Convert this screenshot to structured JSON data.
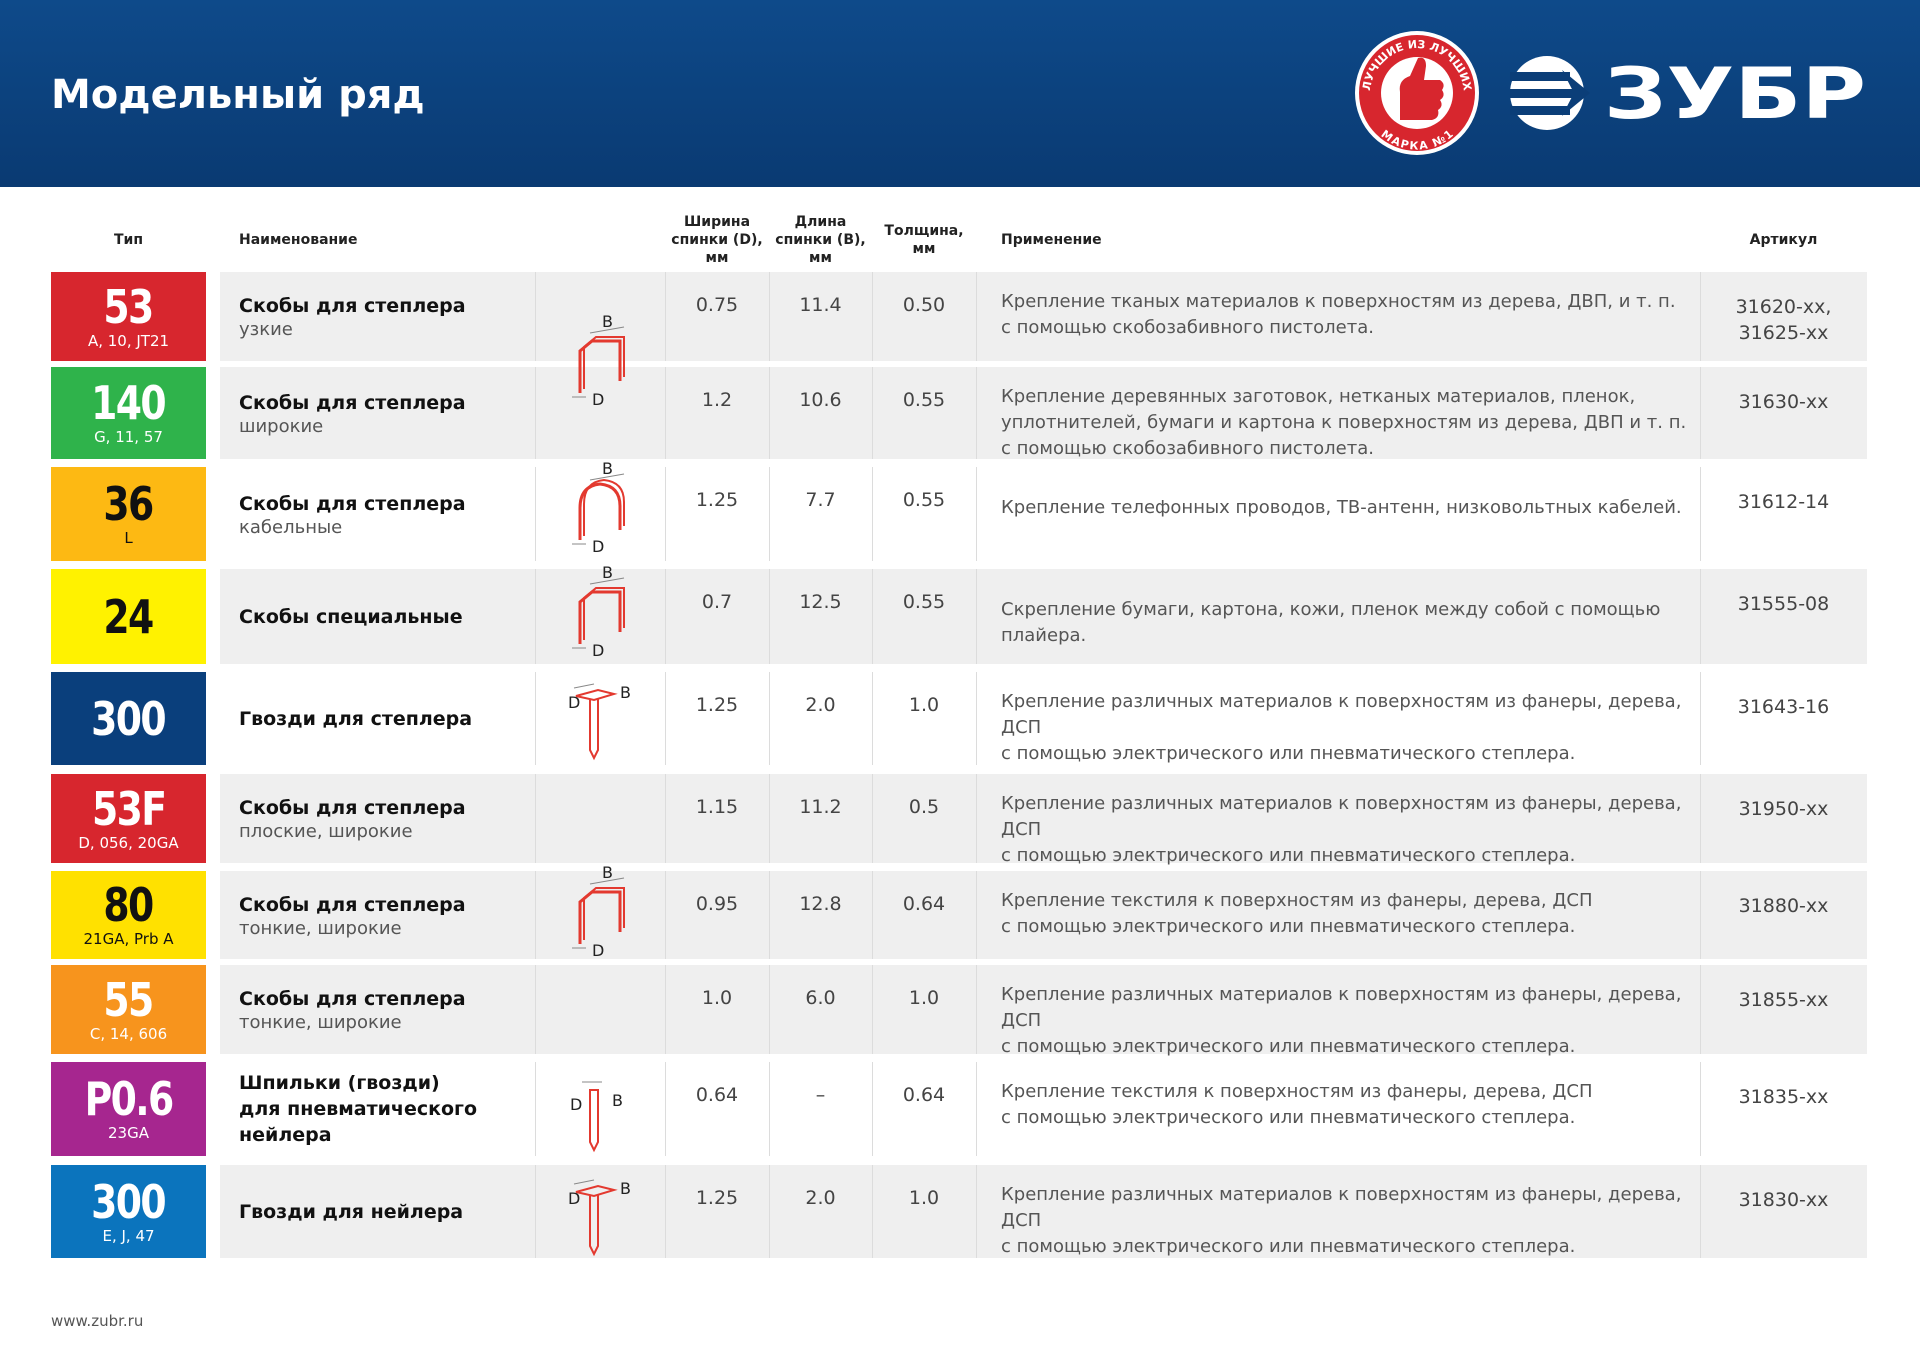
{
  "header": {
    "title": "Модельный ряд",
    "badge_top": "ЛУЧШИЕ ИЗ ЛУЧШИХ",
    "badge_bottom": "МАРКА №1",
    "brand": "ЗУБР"
  },
  "table": {
    "columns": [
      "Тип",
      "Наименование",
      "Ширина\nспинки (D), мм",
      "Длина\nспинки (B), мм",
      "Толщина,\nмм",
      "Применение",
      "Артикул"
    ],
    "rows": [
      {
        "type": "53",
        "type_sub": "A, 10, JT21",
        "color": "#d7262e",
        "text_color": "#ffffff",
        "name": "Скобы для степлера",
        "name_sub": "узкие",
        "d": "0.75",
        "b": "11.4",
        "t": "0.50",
        "application": "Крепление тканых материалов к поверхностям из дерева, ДВП, и т. п.\nс помощью скобозабивного пистолета.",
        "article": "31620-xx,\n31625-xx"
      },
      {
        "type": "140",
        "type_sub": "G, 11, 57",
        "color": "#2fb34b",
        "text_color": "#ffffff",
        "name": "Скобы для степлера",
        "name_sub": "широкие",
        "d": "1.2",
        "b": "10.6",
        "t": "0.55",
        "application": "Крепление деревянных заготовок, нетканых материалов, пленок,\nуплотнителей, бумаги и картона к поверхностям из дерева, ДВП и т. п.\nс помощью скобозабивного пистолета.",
        "article": "31630-xx"
      },
      {
        "type": "36",
        "type_sub": "L",
        "color": "#fdb913",
        "text_color": "#111111",
        "name": "Скобы для степлера",
        "name_sub": "кабельные",
        "d": "1.25",
        "b": "7.7",
        "t": "0.55",
        "application": "Крепление телефонных проводов, ТВ-антенн, низковольтных кабелей.",
        "article": "31612-14"
      },
      {
        "type": "24",
        "type_sub": null,
        "color": "#fff200",
        "text_color": "#111111",
        "name": "Скобы специальные",
        "name_sub": null,
        "d": "0.7",
        "b": "12.5",
        "t": "0.55",
        "application": "Скрепление бумаги, картона, кожи, пленок между собой с помощью плайера.",
        "article": "31555-08"
      },
      {
        "type": "300",
        "type_sub": null,
        "color": "#0a3f7c",
        "text_color": "#ffffff",
        "name": "Гвозди для степлера",
        "name_sub": null,
        "d": "1.25",
        "b": "2.0",
        "t": "1.0",
        "application": "Крепление различных материалов к поверхностям из фанеры, дерева, ДСП\nс помощью электрического или пневматического степлера.",
        "article": "31643-16"
      },
      {
        "type": "53F",
        "type_sub": "D, 056, 20GA",
        "color": "#d7262e",
        "text_color": "#ffffff",
        "name": "Скобы для степлера",
        "name_sub": "плоские, широкие",
        "d": "1.15",
        "b": "11.2",
        "t": "0.5",
        "application": "Крепление различных материалов к поверхностям из фанеры, дерева, ДСП\nс помощью электрического или пневматического степлера.",
        "article": "31950-xx"
      },
      {
        "type": "80",
        "type_sub": "21GA, Prb A",
        "color": "#ffe100",
        "text_color": "#111111",
        "name": "Скобы для степлера",
        "name_sub": "тонкие, широкие",
        "d": "0.95",
        "b": "12.8",
        "t": "0.64",
        "application": "Крепление текстиля к поверхностям из фанеры, дерева, ДСП\nс помощью электрического или пневматического степлера.",
        "article": "31880-xx"
      },
      {
        "type": "55",
        "type_sub": "C, 14, 606",
        "color": "#f7941d",
        "text_color": "#ffffff",
        "name": "Скобы для степлера",
        "name_sub": "тонкие, широкие",
        "d": "1.0",
        "b": "6.0",
        "t": "1.0",
        "application": "Крепление различных материалов к поверхностям из фанеры, дерева, ДСП\nс помощью электрического или пневматического степлера.",
        "article": "31855-xx"
      },
      {
        "type": "P0.6",
        "type_sub": "23GA",
        "color": "#a6268f",
        "text_color": "#ffffff",
        "name": "Шпильки (гвозди)\nдля пневматического\nнейлера",
        "name_sub": null,
        "d": "0.64",
        "b": "–",
        "t": "0.64",
        "application": "Крепление текстиля к поверхностям из фанеры, дерева, ДСП\nс помощью электрического или пневматического степлера.",
        "article": "31835-xx"
      },
      {
        "type": "300",
        "type_sub": "E, J, 47",
        "color": "#0b74bd",
        "text_color": "#ffffff",
        "name": "Гвозди для нейлера",
        "name_sub": null,
        "d": "1.25",
        "b": "2.0",
        "t": "1.0",
        "application": "Крепление различных материалов к поверхностям из фанеры, дерева, ДСП\nс помощью электрического или пневматического степлера.",
        "article": "31830-xx"
      }
    ]
  },
  "icon_labels": {
    "b": "B",
    "d": "D"
  },
  "footer": {
    "url": "www.zubr.ru"
  }
}
